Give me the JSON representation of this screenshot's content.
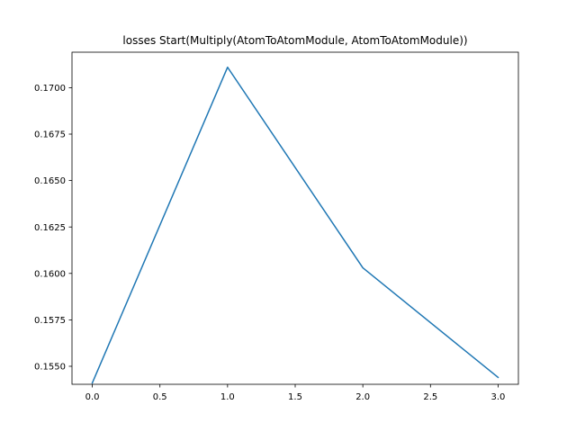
{
  "chart_data": {
    "type": "line",
    "title": "losses Start(Multiply(AtomToAtomModule, AtomToAtomModule))",
    "xlabel": "",
    "ylabel": "",
    "xlim": [
      -0.15,
      3.15
    ],
    "ylim": [
      0.15403,
      0.17191
    ],
    "x_ticks": [
      0.0,
      0.5,
      1.0,
      1.5,
      2.0,
      2.5,
      3.0
    ],
    "x_tick_labels": [
      "0.0",
      "0.5",
      "1.0",
      "1.5",
      "2.0",
      "2.5",
      "3.0"
    ],
    "y_ticks": [
      0.155,
      0.1575,
      0.16,
      0.1625,
      0.165,
      0.1675,
      0.17
    ],
    "y_tick_labels": [
      "0.1550",
      "0.1575",
      "0.1600",
      "0.1625",
      "0.1650",
      "0.1675",
      "0.1700"
    ],
    "grid": false,
    "series": [
      {
        "color": "#1f77b4",
        "x": [
          0,
          1,
          2,
          3
        ],
        "y": [
          0.1541,
          0.1711,
          0.1603,
          0.1544
        ]
      }
    ]
  }
}
